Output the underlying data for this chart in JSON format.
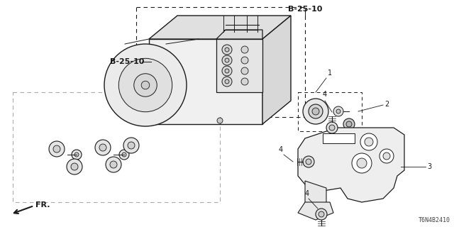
{
  "bg_color": "#ffffff",
  "line_color": "#1a1a1a",
  "part_number": "T6N4B2410",
  "labels": {
    "B_25_10_top": "B-25-10",
    "B_25_10_left": "B-25-10",
    "num_1": "1",
    "num_2": "2",
    "num_3": "3",
    "num_4": "4"
  },
  "fr_label": "FR."
}
